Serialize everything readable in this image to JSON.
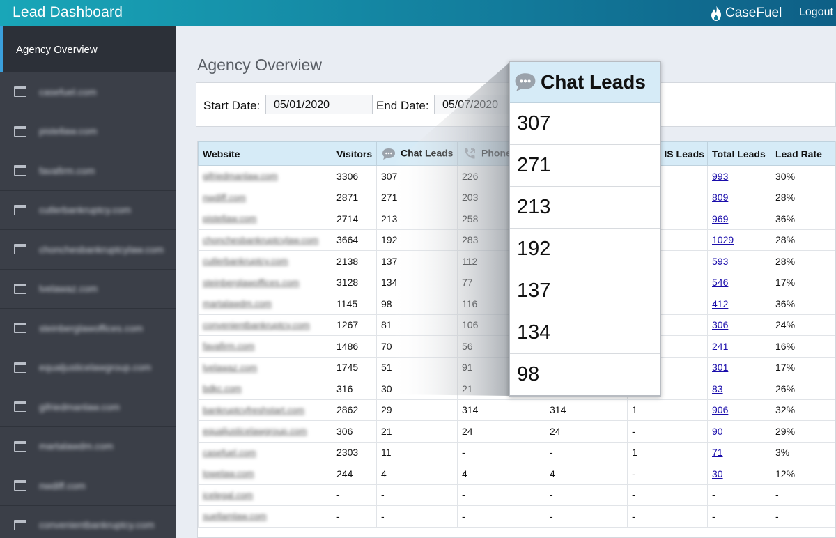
{
  "header": {
    "title": "Lead Dashboard",
    "brand": "CaseFuel",
    "logout": "Logout"
  },
  "sidebar": {
    "active": "Agency Overview",
    "items": [
      "casefuel.com",
      "pistellaw.com",
      "favafirm.com",
      "cutlerbankruptcy.com",
      "chonchesbankruptcylaw.com",
      "lvelawaz.com",
      "steinberglawoffices.com",
      "equaljusticelawgroup.com",
      "gifriedmanlaw.com",
      "martalawdm.com",
      "nwdiff.com",
      "convenientbankruptcy.com"
    ]
  },
  "page": {
    "title": "Agency Overview"
  },
  "filters": {
    "start_label": "Start Date:",
    "start_value": "05/01/2020",
    "end_label": "End Date:",
    "end_value": "05/07/2020"
  },
  "table": {
    "headers": {
      "website": "Website",
      "visitors": "Visitors",
      "chat": "Chat Leads",
      "phone": "Phone",
      "c4": "",
      "sms": "IS Leads",
      "total": "Total Leads",
      "rate": "Lead Rate"
    },
    "rows": [
      {
        "site": "gifriedmanlaw.com",
        "visitors": "3306",
        "chat": "307",
        "phone": "226",
        "c4": "",
        "sms": "",
        "total": "993",
        "rate": "30%"
      },
      {
        "site": "nwdiff.com",
        "visitors": "2871",
        "chat": "271",
        "phone": "203",
        "c4": "",
        "sms": "",
        "total": "809",
        "rate": "28%"
      },
      {
        "site": "pistellaw.com",
        "visitors": "2714",
        "chat": "213",
        "phone": "258",
        "c4": "",
        "sms": "",
        "total": "969",
        "rate": "36%"
      },
      {
        "site": "chonchesbankruptcylaw.com",
        "visitors": "3664",
        "chat": "192",
        "phone": "283",
        "c4": "",
        "sms": "",
        "total": "1029",
        "rate": "28%"
      },
      {
        "site": "cutlerbankruptcy.com",
        "visitors": "2138",
        "chat": "137",
        "phone": "112",
        "c4": "",
        "sms": "",
        "total": "593",
        "rate": "28%"
      },
      {
        "site": "steinberglawoffices.com",
        "visitors": "3128",
        "chat": "134",
        "phone": "77",
        "c4": "",
        "sms": "",
        "total": "546",
        "rate": "17%"
      },
      {
        "site": "martalawdm.com",
        "visitors": "1145",
        "chat": "98",
        "phone": "116",
        "c4": "",
        "sms": "",
        "total": "412",
        "rate": "36%"
      },
      {
        "site": "convenientbankruptcy.com",
        "visitors": "1267",
        "chat": "81",
        "phone": "106",
        "c4": "",
        "sms": "",
        "total": "306",
        "rate": "24%"
      },
      {
        "site": "favafirm.com",
        "visitors": "1486",
        "chat": "70",
        "phone": "56",
        "c4": "",
        "sms": "",
        "total": "241",
        "rate": "16%"
      },
      {
        "site": "lvelawaz.com",
        "visitors": "1745",
        "chat": "51",
        "phone": "91",
        "c4": "",
        "sms": "",
        "total": "301",
        "rate": "17%"
      },
      {
        "site": "bdkc.com",
        "visitors": "316",
        "chat": "30",
        "phone": "21",
        "c4": "",
        "sms": "",
        "total": "83",
        "rate": "26%"
      },
      {
        "site": "bankruptcyfreshstart.com",
        "visitors": "2862",
        "chat": "29",
        "phone": "314",
        "c4": "314",
        "sms": "1",
        "total": "906",
        "rate": "32%"
      },
      {
        "site": "equaljusticelawgroup.com",
        "visitors": "306",
        "chat": "21",
        "phone": "24",
        "c4": "24",
        "sms": "-",
        "total": "90",
        "rate": "29%"
      },
      {
        "site": "casefuel.com",
        "visitors": "2303",
        "chat": "11",
        "phone": "-",
        "c4": "-",
        "sms": "1",
        "total": "71",
        "rate": "3%"
      },
      {
        "site": "lowelaw.com",
        "visitors": "244",
        "chat": "4",
        "phone": "4",
        "c4": "4",
        "sms": "-",
        "total": "30",
        "rate": "12%"
      },
      {
        "site": "icelegal.com",
        "visitors": "-",
        "chat": "-",
        "phone": "-",
        "c4": "-",
        "sms": "-",
        "total": "-",
        "rate": "-"
      },
      {
        "site": "suellamlaw.com",
        "visitors": "-",
        "chat": "-",
        "phone": "-",
        "c4": "-",
        "sms": "-",
        "total": "-",
        "rate": "-"
      }
    ]
  },
  "zoom": {
    "title": "Chat Leads",
    "values": [
      "307",
      "271",
      "213",
      "192",
      "137",
      "134",
      "98"
    ]
  },
  "colors": {
    "header_start": "#19a6b8",
    "header_end": "#0e5f86",
    "sidebar": "#3b3f48",
    "table_head": "#d6ebf7",
    "link": "#1a0dab"
  }
}
